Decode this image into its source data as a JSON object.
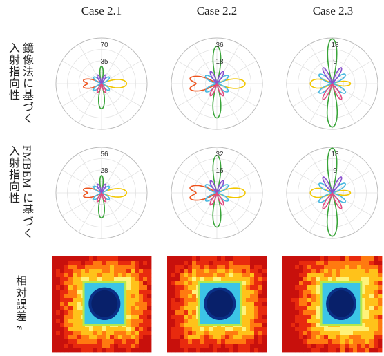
{
  "column_titles": [
    "Case 2.1",
    "Case 2.2",
    "Case 2.3"
  ],
  "row_labels": [
    "鏡像法に基づく\n入射指向性",
    "FMBEM に基づく\n入射指向性",
    "相対誤差 ε"
  ],
  "chart_data": [
    {
      "type": "polar",
      "row": "鏡像法に基づく入射指向性",
      "case": "Case 2.1",
      "radial_ticks": [
        35,
        70
      ],
      "rmax": 70
    },
    {
      "type": "polar",
      "row": "鏡像法に基づく入射指向性",
      "case": "Case 2.2",
      "radial_ticks": [
        18,
        36
      ],
      "rmax": 36
    },
    {
      "type": "polar",
      "row": "鏡像法に基づく入射指向性",
      "case": "Case 2.3",
      "radial_ticks": [
        9,
        18
      ],
      "rmax": 18
    },
    {
      "type": "polar",
      "row": "FMBEM に基づく入射指向性",
      "case": "Case 2.1",
      "radial_ticks": [
        28,
        56
      ],
      "rmax": 56
    },
    {
      "type": "polar",
      "row": "FMBEM に基づく入射指向性",
      "case": "Case 2.2",
      "radial_ticks": [
        16,
        32
      ],
      "rmax": 32
    },
    {
      "type": "polar",
      "row": "FMBEM に基づく入射指向性",
      "case": "Case 2.3",
      "radial_ticks": [
        9,
        18
      ],
      "rmax": 18
    },
    {
      "type": "heatmap",
      "row": "相対誤差 ε",
      "case": "Case 2.1"
    },
    {
      "type": "heatmap",
      "row": "相対誤差 ε",
      "case": "Case 2.2"
    },
    {
      "type": "heatmap",
      "row": "相対誤差 ε",
      "case": "Case 2.3"
    }
  ]
}
